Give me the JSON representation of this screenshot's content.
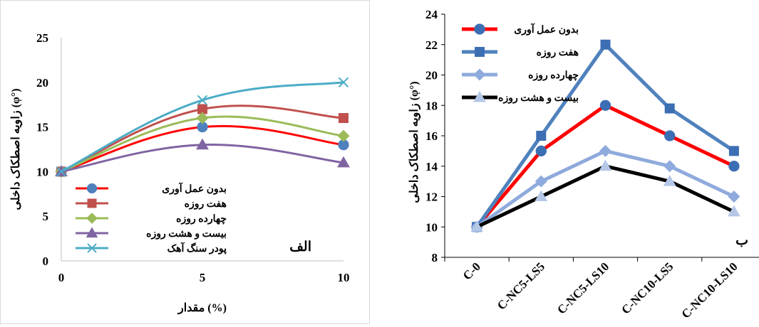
{
  "chart_data": [
    {
      "type": "line",
      "panel_label": "الف",
      "x": [
        0,
        5,
        10
      ],
      "xlabel": "مقدار (%)",
      "ylabel": "زاویه اصطکاک داخلی (φ°)",
      "ylim": [
        0,
        25
      ],
      "yticks": [
        0,
        5,
        10,
        15,
        20,
        25
      ],
      "grid": false,
      "smooth": true,
      "legend_position": "bottom-left",
      "series": [
        {
          "name": "بدون عمل آوری",
          "values": [
            10,
            15,
            13
          ],
          "color": "#ff0000",
          "marker": "circle",
          "marker_color": "#4f81bd"
        },
        {
          "name": "هفت روزه",
          "values": [
            10,
            17,
            16
          ],
          "color": "#c0504d",
          "marker": "square",
          "marker_color": "#c0504d"
        },
        {
          "name": "چهارده روزه",
          "values": [
            10,
            16,
            14
          ],
          "color": "#9bbb59",
          "marker": "diamond",
          "marker_color": "#9bbb59"
        },
        {
          "name": "بیست و هشت روزه",
          "values": [
            10,
            13,
            11
          ],
          "color": "#8064a2",
          "marker": "triangle",
          "marker_color": "#8064a2"
        },
        {
          "name": "پودر سنگ آهک",
          "values": [
            10,
            18,
            20
          ],
          "color": "#4bacc6",
          "marker": "x",
          "marker_color": "#4bacc6"
        }
      ]
    },
    {
      "type": "line",
      "panel_label": "ب",
      "categories": [
        "C-0",
        "C-NC5-LS5",
        "C-NC5-LS10",
        "C-NC10-LS5",
        "C-NC10-LS10"
      ],
      "xlabel": "",
      "ylabel": "زاویه اصطکاک داخلی (φ°)",
      "ylim": [
        8,
        24
      ],
      "yticks": [
        8,
        10,
        12,
        14,
        16,
        18,
        20,
        22,
        24
      ],
      "grid": false,
      "smooth": false,
      "legend_position": "top-left",
      "series": [
        {
          "name": "بدون عمل آوری",
          "values": [
            10,
            15,
            18,
            16,
            14
          ],
          "color": "#ff0000",
          "marker": "circle",
          "marker_color": "#3c6eb4"
        },
        {
          "name": "هفت روزه",
          "values": [
            10,
            16,
            22,
            17.8,
            15
          ],
          "color": "#4f81bd",
          "marker": "square",
          "marker_color": "#3c6eb4"
        },
        {
          "name": "چهارده روزه",
          "values": [
            10,
            13,
            15,
            14,
            12
          ],
          "color": "#8faadc",
          "marker": "diamond",
          "marker_color": "#8faadc"
        },
        {
          "name": "بیست و هشت روزه",
          "values": [
            10,
            12,
            14,
            13,
            11
          ],
          "color": "#000000",
          "marker": "triangle",
          "marker_color": "#b4c7e7"
        }
      ]
    }
  ]
}
